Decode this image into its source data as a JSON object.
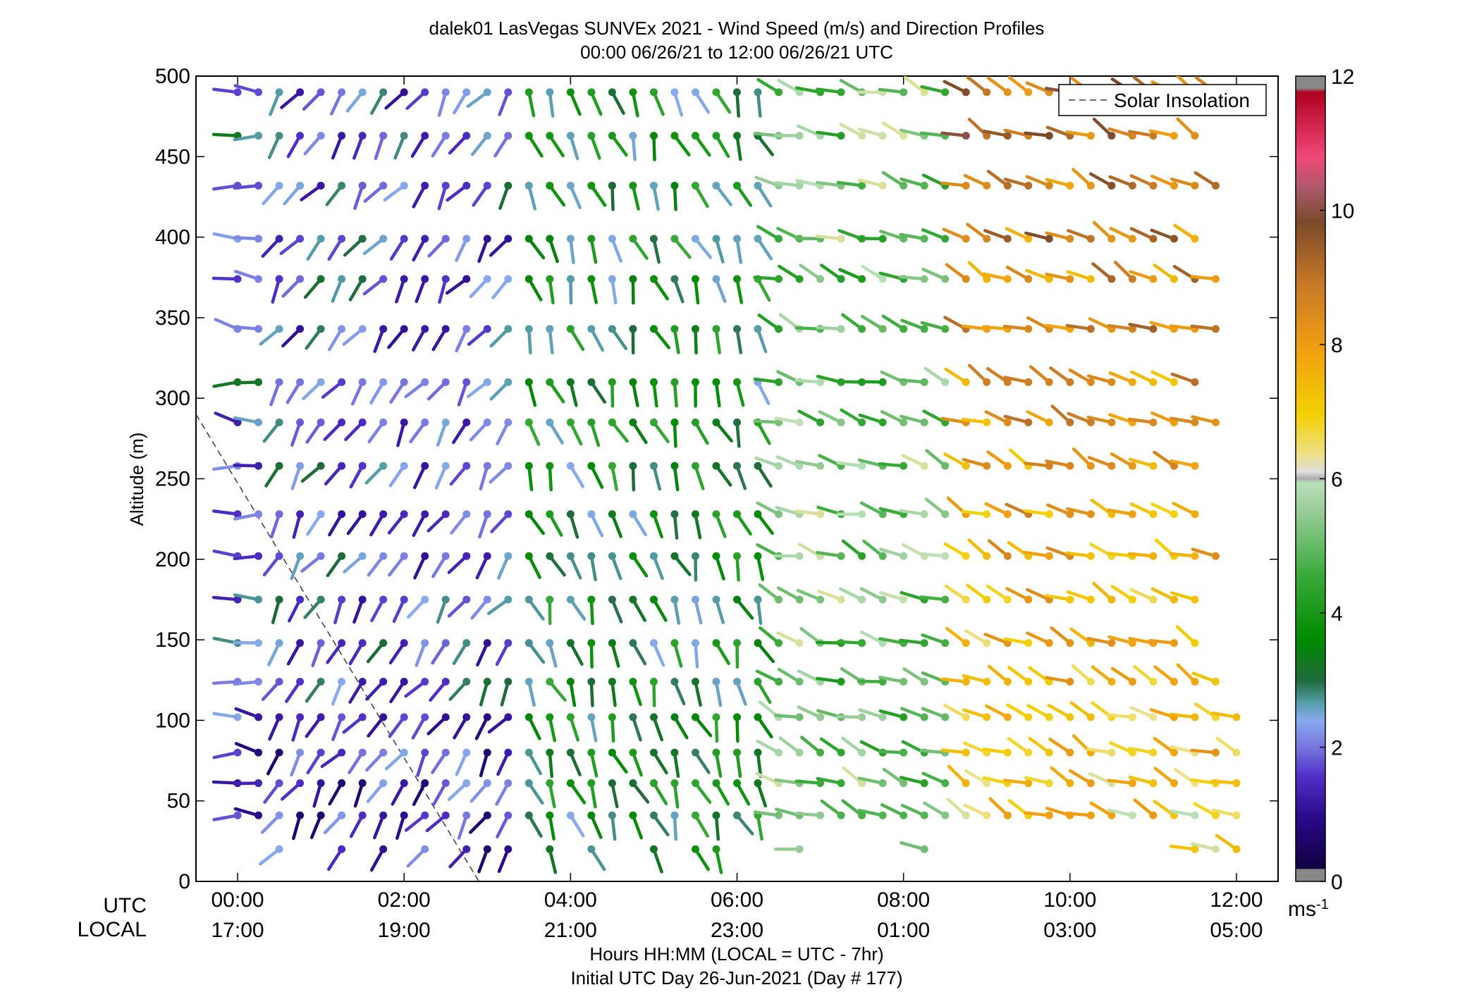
{
  "chart_data": {
    "type": "wind-barb",
    "title": "dalek01 LasVegas SUNVEx 2021 - Wind Speed (m/s) and Direction Profiles",
    "subtitle": "00:00 06/26/21 to 12:00 06/26/21  UTC",
    "ylabel": "Altitude (m)",
    "xlabel": "Hours HH:MM  (LOCAL = UTC - 7hr)",
    "xlabel2": "Initial UTC Day 26-Jun-2021 (Day # 177)",
    "row_label_utc": "UTC",
    "row_label_local": "LOCAL",
    "x_ticks_utc": [
      "00:00",
      "02:00",
      "04:00",
      "06:00",
      "08:00",
      "10:00",
      "12:00"
    ],
    "x_ticks_local": [
      "17:00",
      "19:00",
      "21:00",
      "23:00",
      "01:00",
      "03:00",
      "05:00"
    ],
    "x_tick_hours": [
      0,
      2,
      4,
      6,
      8,
      10,
      12
    ],
    "xlim_hours": [
      -0.5,
      12.5
    ],
    "ylim": [
      0,
      500
    ],
    "y_ticks": [
      "0",
      "50",
      "100",
      "150",
      "200",
      "250",
      "300",
      "350",
      "400",
      "450",
      "500"
    ],
    "y_tick_values": [
      0,
      50,
      100,
      150,
      200,
      250,
      300,
      350,
      400,
      450,
      500
    ],
    "colorbar": {
      "range": [
        0,
        12
      ],
      "ticks": [
        "0",
        "2",
        "4",
        "6",
        "8",
        "10",
        "12"
      ],
      "tick_values": [
        0,
        2,
        4,
        6,
        8,
        10,
        12
      ],
      "unit_label": "ms",
      "unit_exponent": "-1"
    },
    "legend": {
      "label": "Solar Insolation",
      "placement": "top-right"
    },
    "solar_insolation_line": {
      "x_hours": [
        -0.5,
        2.9
      ],
      "y": [
        290,
        0
      ]
    },
    "altitudes": [
      20,
      41,
      61,
      80,
      102,
      124,
      148,
      175,
      202,
      228,
      258,
      285,
      310,
      343,
      374,
      399,
      432,
      463,
      490
    ],
    "times_hours": [
      0,
      0.25,
      0.5,
      0.75,
      1,
      1.25,
      1.5,
      1.75,
      2,
      2.25,
      2.5,
      2.75,
      3,
      3.25,
      3.5,
      3.75,
      4,
      4.25,
      4.5,
      4.75,
      5,
      5.25,
      5.5,
      5.75,
      6,
      6.25,
      6.5,
      6.75,
      7,
      7.25,
      7.5,
      7.75,
      8,
      8.25,
      8.5,
      8.75,
      9,
      9.25,
      9.5,
      9.75,
      10,
      10.25,
      10.5,
      10.75,
      11,
      11.25,
      11.5,
      11.75,
      12
    ],
    "wind_regimes": [
      {
        "name": "",
        "t_range": [
          0,
          0.3
        ],
        "speed": 2.2,
        "direction_deg": 275
      },
      {
        "name": "",
        "t_range": [
          0.3,
          3.5
        ],
        "speed": 2.0,
        "direction_deg": 215
      },
      {
        "name": "",
        "t_range": [
          3.5,
          6.3
        ],
        "speed": 3.5,
        "direction_deg": 160
      },
      {
        "name": "",
        "t_range": [
          6.3,
          8.6
        ],
        "speed": 5.2,
        "direction_deg": 290
      },
      {
        "name": "",
        "t_range": [
          8.6,
          12
        ],
        "speed": 7.5,
        "direction_deg": 295
      }
    ]
  }
}
